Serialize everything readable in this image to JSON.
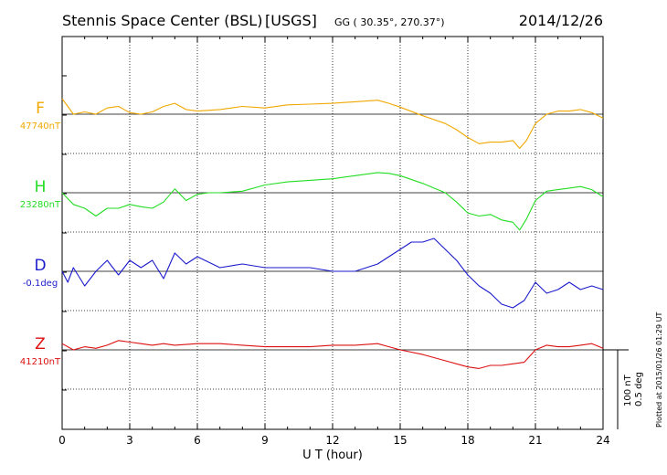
{
  "header": {
    "station": "Stennis Space Center (BSL)",
    "agency": "[USGS]",
    "coords": "GG ( 30.35°, 270.37°)",
    "date": "2014/12/26"
  },
  "scale_label_1": "100 nT",
  "scale_label_2": "0.5 deg",
  "plotted_note": "Plotted at 2015/01/26 01:29 UT",
  "chart_data": {
    "type": "line",
    "xlabel": "U T (hour)",
    "xlim": [
      0,
      24
    ],
    "xticks": [
      "0",
      "3",
      "6",
      "9",
      "12",
      "15",
      "18",
      "21",
      "24"
    ],
    "grid": true,
    "series": [
      {
        "name": "F",
        "baseline_label": "47740nT",
        "color": "#f0a800",
        "baseline": 47740,
        "unit": "nT",
        "x": [
          0,
          0.25,
          0.5,
          1,
          1.5,
          2,
          2.5,
          3,
          3.5,
          4,
          4.5,
          5,
          5.5,
          6,
          7,
          8,
          9,
          10,
          11,
          12,
          13,
          14,
          14.5,
          15,
          16,
          17,
          17.5,
          18,
          18.5,
          19,
          19.5,
          20,
          20.3,
          20.6,
          21,
          21.5,
          22,
          22.5,
          23,
          23.5,
          24
        ],
        "values": [
          20,
          10,
          0,
          3,
          0,
          8,
          10,
          2,
          0,
          3,
          10,
          14,
          6,
          4,
          6,
          10,
          8,
          12,
          13,
          14,
          16,
          18,
          14,
          9,
          -2,
          -12,
          -20,
          -30,
          -38,
          -36,
          -36,
          -34,
          -44,
          -34,
          -12,
          0,
          4,
          4,
          6,
          2,
          -5
        ]
      },
      {
        "name": "H",
        "baseline_label": "23280nT",
        "color": "#22dd22",
        "baseline": 23280,
        "unit": "nT",
        "x": [
          0,
          0.5,
          1,
          1.5,
          2,
          2.5,
          3,
          3.5,
          4,
          4.5,
          5,
          5.5,
          6,
          6.5,
          7,
          8,
          9,
          10,
          11,
          12,
          13,
          14,
          14.5,
          15,
          16,
          17,
          17.5,
          18,
          18.5,
          19,
          19.5,
          20,
          20.3,
          20.6,
          21,
          21.5,
          22,
          22.5,
          23,
          23.5,
          24
        ],
        "values": [
          0,
          -15,
          -20,
          -30,
          -20,
          -20,
          -15,
          -18,
          -20,
          -12,
          5,
          -10,
          -2,
          0,
          0,
          2,
          10,
          14,
          16,
          18,
          22,
          26,
          25,
          22,
          12,
          0,
          -12,
          -26,
          -30,
          -28,
          -35,
          -38,
          -48,
          -34,
          -10,
          2,
          4,
          6,
          8,
          4,
          -5
        ]
      },
      {
        "name": "D",
        "baseline_label": "-0.1deg",
        "color": "#1a1acc",
        "baseline": -0.1,
        "unit": "deg",
        "x": [
          0,
          0.25,
          0.5,
          1,
          1.5,
          2,
          2.5,
          3,
          3.5,
          4,
          4.5,
          5,
          5.5,
          6,
          7,
          8,
          9,
          10,
          11,
          12,
          13,
          14,
          15,
          15.5,
          16,
          16.5,
          17,
          17.5,
          18,
          18.5,
          19,
          19.5,
          20,
          20.5,
          21,
          21.5,
          22,
          22.5,
          23,
          23.5,
          24
        ],
        "values": [
          0.0,
          -0.03,
          0.01,
          -0.04,
          0.0,
          0.03,
          -0.01,
          0.03,
          0.01,
          0.03,
          -0.02,
          0.05,
          0.02,
          0.04,
          0.01,
          0.02,
          0.01,
          0.01,
          0.01,
          0.0,
          0.0,
          0.02,
          0.06,
          0.08,
          0.08,
          0.09,
          0.06,
          0.03,
          -0.01,
          -0.04,
          -0.06,
          -0.09,
          -0.1,
          -0.08,
          -0.03,
          -0.06,
          -0.05,
          -0.03,
          -0.05,
          -0.04,
          -0.05
        ]
      },
      {
        "name": "Z",
        "baseline_label": "41210nT",
        "color": "#dd1111",
        "baseline": 41210,
        "unit": "nT",
        "x": [
          0,
          0.5,
          1,
          1.5,
          2,
          2.5,
          3,
          3.5,
          4,
          4.5,
          5,
          6,
          7,
          8,
          9,
          10,
          11,
          12,
          13,
          14,
          14.5,
          15,
          16,
          17,
          18,
          18.5,
          19,
          19.5,
          20,
          20.5,
          21,
          21.5,
          22,
          22.5,
          23,
          23.5,
          24
        ],
        "values": [
          8,
          0,
          4,
          2,
          6,
          12,
          10,
          8,
          6,
          8,
          6,
          8,
          8,
          6,
          4,
          4,
          4,
          6,
          6,
          8,
          4,
          0,
          -6,
          -14,
          -22,
          -24,
          -20,
          -20,
          -18,
          -16,
          0,
          6,
          4,
          4,
          6,
          8,
          2
        ]
      }
    ]
  }
}
